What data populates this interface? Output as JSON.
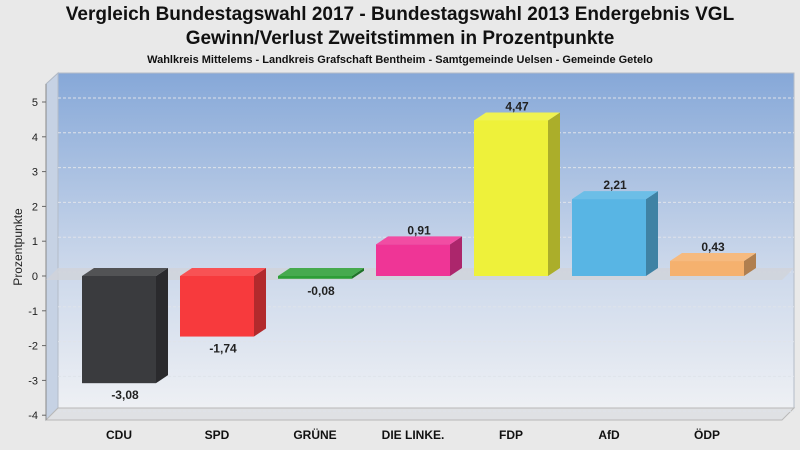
{
  "header": {
    "title_line1": "Vergleich Bundestagswahl 2017 - Bundestagswahl 2013 Endergebnis VGL",
    "title_line2": "Gewinn/Verlust Zweitstimmen in Prozentpunkte",
    "subtitle": "Wahlkreis Mittelems - Landkreis Grafschaft Bentheim - Samtgemeinde Uelsen - Gemeinde Getelo"
  },
  "chart_data": {
    "type": "bar",
    "title": "Vergleich Bundestagswahl 2017 - Bundestagswahl 2013 Endergebnis VGL Gewinn/Verlust Zweitstimmen in Prozentpunkte",
    "subtitle": "Wahlkreis Mittelems - Landkreis Grafschaft Bentheim - Samtgemeinde Uelsen - Gemeinde Getelo",
    "xlabel": "",
    "ylabel": "Prozentpunkte",
    "ylim": [
      -4,
      5
    ],
    "yticks": [
      -4,
      -3,
      -2,
      -1,
      0,
      1,
      2,
      3,
      4,
      5
    ],
    "grid": true,
    "categories": [
      "CDU",
      "SPD",
      "GRÜNE",
      "DIE LINKE.",
      "FDP",
      "AfD",
      "ÖDP"
    ],
    "values": [
      -3.08,
      -1.74,
      -0.08,
      0.91,
      4.47,
      2.21,
      0.43
    ],
    "value_labels": [
      "-3,08",
      "-1,74",
      "-0,08",
      "0,91",
      "4,47",
      "2,21",
      "0,43"
    ],
    "colors": [
      "#3a3b3e",
      "#f73a3d",
      "#2e9e36",
      "#ef3596",
      "#eef13a",
      "#58b5e4",
      "#f5b16e"
    ]
  }
}
